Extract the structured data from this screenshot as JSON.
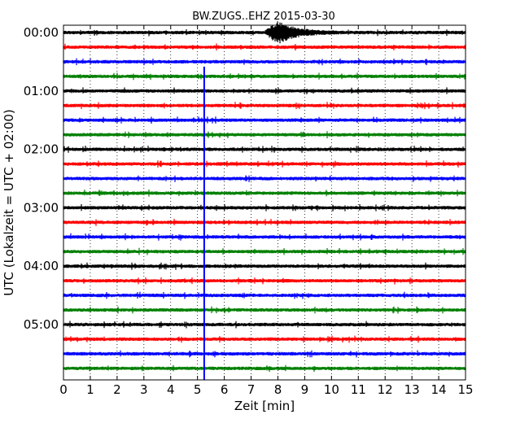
{
  "chart_data": {
    "type": "line",
    "title": "BW.ZUGS..EHZ 2015-03-30",
    "xlabel": "Zeit  [min]",
    "ylabel": "UTC (Lokalzeit = UTC + 02:00)",
    "xlim": [
      0,
      15
    ],
    "x_ticks": [
      "0",
      "1",
      "2",
      "3",
      "4",
      "5",
      "6",
      "7",
      "8",
      "9",
      "10",
      "11",
      "12",
      "13",
      "14",
      "15"
    ],
    "y_ticks": [
      "00:00",
      "01:00",
      "02:00",
      "03:00",
      "04:00",
      "05:00"
    ],
    "grid": "vertical dotted",
    "trace_interval_minutes": 15,
    "trace_colors": [
      "#000000",
      "#ff0000",
      "#0000ff",
      "#008000"
    ],
    "trace_count": 24,
    "events": [
      {
        "trace": 0,
        "start_min": 7.5,
        "peak_min": 8.0,
        "end_min": 10.5,
        "amplitude": "large"
      },
      {
        "trace": 3,
        "start_min": 5.2,
        "end_min": 5.3,
        "amplitude": "full-height marker",
        "color": "#0000ff"
      }
    ]
  }
}
